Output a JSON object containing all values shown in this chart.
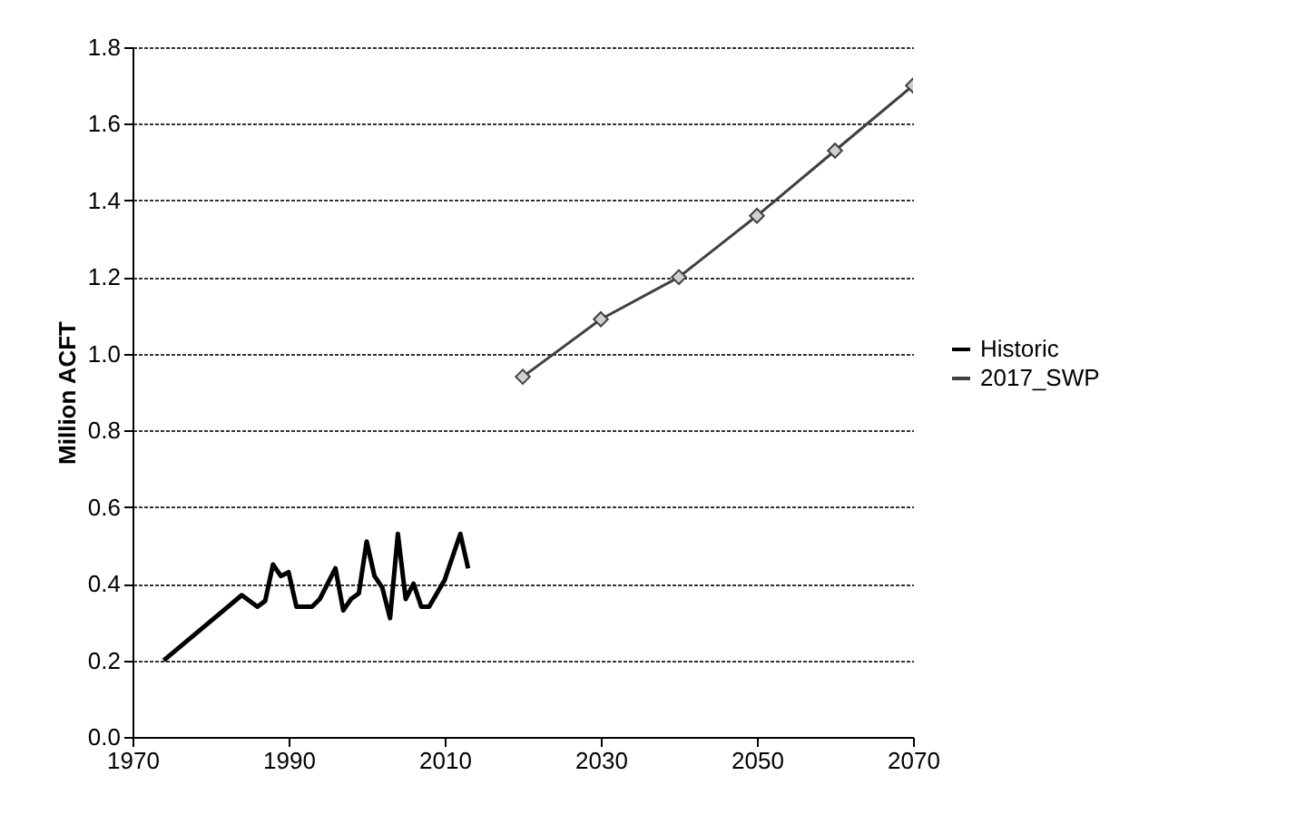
{
  "chart_data": {
    "type": "line",
    "ylabel": "Million ACFT",
    "xlim": [
      1970,
      2070
    ],
    "xticks": [
      1970,
      1990,
      2010,
      2030,
      2050,
      2070
    ],
    "ylim": [
      0,
      1.8
    ],
    "yticks": [
      {
        "value": 0,
        "label": "0.0"
      },
      {
        "value": 0.2,
        "label": "0.2"
      },
      {
        "value": 0.4,
        "label": "0.4"
      },
      {
        "value": 0.6,
        "label": "0.6"
      },
      {
        "value": 0.8,
        "label": "0.8"
      },
      {
        "value": 1,
        "label": "1.0"
      },
      {
        "value": 1.2,
        "label": "1.2"
      },
      {
        "value": 1.4,
        "label": "1.4"
      },
      {
        "value": 1.6,
        "label": "1.6"
      },
      {
        "value": 1.8,
        "label": "1.8"
      }
    ],
    "grid": "y",
    "legend": "right",
    "series": [
      {
        "name": "Historic",
        "color": "#000000",
        "marker": "none",
        "x": [
          1974,
          1984,
          1986,
          1987,
          1988,
          1989,
          1990,
          1991,
          1993,
          1994,
          1996,
          1997,
          1998,
          1999,
          2000,
          2001,
          2002,
          2003,
          2004,
          2005,
          2006,
          2007,
          2008,
          2010,
          2012,
          2013
        ],
        "values": [
          0.2,
          0.37,
          0.34,
          0.355,
          0.45,
          0.42,
          0.43,
          0.34,
          0.34,
          0.36,
          0.44,
          0.33,
          0.36,
          0.375,
          0.51,
          0.42,
          0.39,
          0.31,
          0.53,
          0.36,
          0.4,
          0.34,
          0.34,
          0.41,
          0.53,
          0.44
        ]
      },
      {
        "name": "2017_SWP",
        "color": "#404040",
        "marker": "diamond",
        "x": [
          2020,
          2030,
          2040,
          2050,
          2060,
          2070
        ],
        "values": [
          0.94,
          1.09,
          1.2,
          1.36,
          1.53,
          1.7
        ]
      }
    ]
  }
}
